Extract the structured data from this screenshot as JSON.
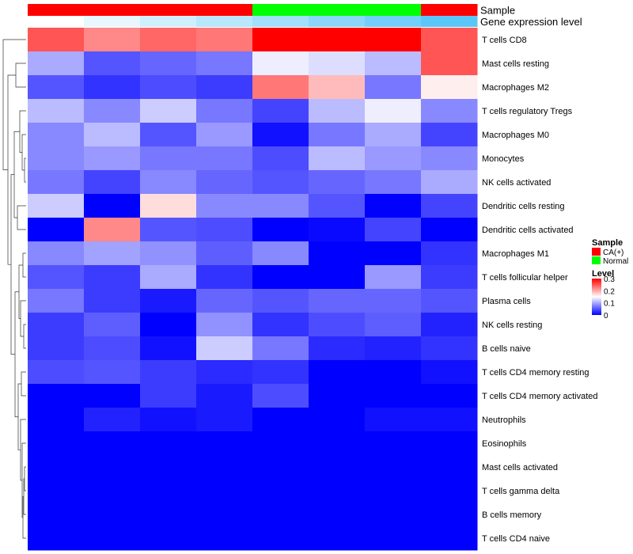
{
  "chart_data": {
    "type": "heatmap",
    "rows": [
      "T cells CD8",
      "Mast cells resting",
      "Macrophages M2",
      "T cells regulatory  Tregs",
      "Macrophages M0",
      "Monocytes",
      "NK cells activated",
      "Dendritic cells resting",
      "Dendritic cells activated",
      "Macrophages M1",
      "T cells follicular helper",
      "Plasma cells",
      "NK cells resting",
      "B cells naive",
      "T cells CD4 memory resting",
      "T cells CD4 memory activated",
      "Neutrophils",
      "Eosinophils",
      "Mast cells activated",
      "T cells gamma delta",
      "B cells memory",
      "T cells CD4 naive"
    ],
    "n_columns": 8,
    "values": [
      [
        0.25,
        0.22,
        0.24,
        0.23,
        0.3,
        0.3,
        0.3,
        0.25
      ],
      [
        0.1,
        0.05,
        0.06,
        0.07,
        0.14,
        0.13,
        0.11,
        0.25
      ],
      [
        0.05,
        0.03,
        0.045,
        0.035,
        0.23,
        0.19,
        0.07,
        0.16
      ],
      [
        0.11,
        0.08,
        0.12,
        0.07,
        0.04,
        0.11,
        0.14,
        0.08
      ],
      [
        0.08,
        0.11,
        0.05,
        0.09,
        0.01,
        0.07,
        0.1,
        0.04
      ],
      [
        0.08,
        0.09,
        0.07,
        0.07,
        0.045,
        0.11,
        0.09,
        0.08
      ],
      [
        0.07,
        0.04,
        0.08,
        0.06,
        0.05,
        0.06,
        0.07,
        0.1
      ],
      [
        0.12,
        0.0,
        0.17,
        0.08,
        0.08,
        0.05,
        0.0,
        0.04
      ],
      [
        0.0,
        0.22,
        0.05,
        0.045,
        0.0,
        0.005,
        0.04,
        0.0
      ],
      [
        0.08,
        0.095,
        0.085,
        0.055,
        0.08,
        0.0,
        0.0,
        0.03
      ],
      [
        0.05,
        0.035,
        0.1,
        0.03,
        0.0,
        0.0,
        0.09,
        0.035
      ],
      [
        0.07,
        0.035,
        0.015,
        0.06,
        0.05,
        0.06,
        0.06,
        0.05
      ],
      [
        0.035,
        0.055,
        0.0,
        0.085,
        0.03,
        0.045,
        0.055,
        0.02
      ],
      [
        0.035,
        0.045,
        0.01,
        0.12,
        0.07,
        0.025,
        0.02,
        0.03
      ],
      [
        0.045,
        0.05,
        0.035,
        0.025,
        0.03,
        0.0,
        0.0,
        0.01
      ],
      [
        0.0,
        0.0,
        0.035,
        0.015,
        0.045,
        0.0,
        0.0,
        0.0
      ],
      [
        0.0,
        0.02,
        0.01,
        0.015,
        0.0,
        0.0,
        0.01,
        0.01
      ],
      [
        0.0,
        0.0,
        0.0,
        0.0,
        0.0,
        0.0,
        0.0,
        0.0
      ],
      [
        0.0,
        0.0,
        0.0,
        0.0,
        0.0,
        0.0,
        0.0,
        0.0
      ],
      [
        0.0,
        0.0,
        0.0,
        0.0,
        0.0,
        0.0,
        0.0,
        0.0
      ],
      [
        0.0,
        0.0,
        0.0,
        0.0,
        0.0,
        0.0,
        0.0,
        0.0
      ],
      [
        0.0,
        0.0,
        0.0,
        0.0,
        0.0,
        0.0,
        0.0,
        0.0
      ]
    ],
    "column_annotations": [
      {
        "name": "Sample",
        "values": [
          "CA(+)",
          "CA(+)",
          "CA(+)",
          "CA(+)",
          "Normal",
          "Normal",
          "Normal",
          "CA(+)"
        ]
      },
      {
        "name": "Gene expression level",
        "values": [
          0.3,
          0.26,
          0.22,
          0.18,
          0.14,
          0.1,
          0.06,
          0.02
        ]
      }
    ],
    "legend": {
      "sample_title": "Sample",
      "sample_entries": [
        {
          "label": "CA(+)",
          "color": "#ff0000"
        },
        {
          "label": "Normal",
          "color": "#00ff00"
        }
      ],
      "level_title": "Level",
      "level_ticks": [
        {
          "label": "0.3",
          "value": 0.3
        },
        {
          "label": "0.2",
          "value": 0.2
        },
        {
          "label": "0.1",
          "value": 0.1
        },
        {
          "label": "0",
          "value": 0
        }
      ],
      "placement": "right"
    },
    "value_range": [
      0,
      0.3
    ],
    "color_scale": {
      "low": "#0000ff",
      "mid": "#ffffff",
      "high": "#ff0000"
    },
    "expr_level_color_scale": {
      "low": "#4fc3f7",
      "high": "#ffffff"
    },
    "row_dendrogram": true,
    "grid": false
  }
}
